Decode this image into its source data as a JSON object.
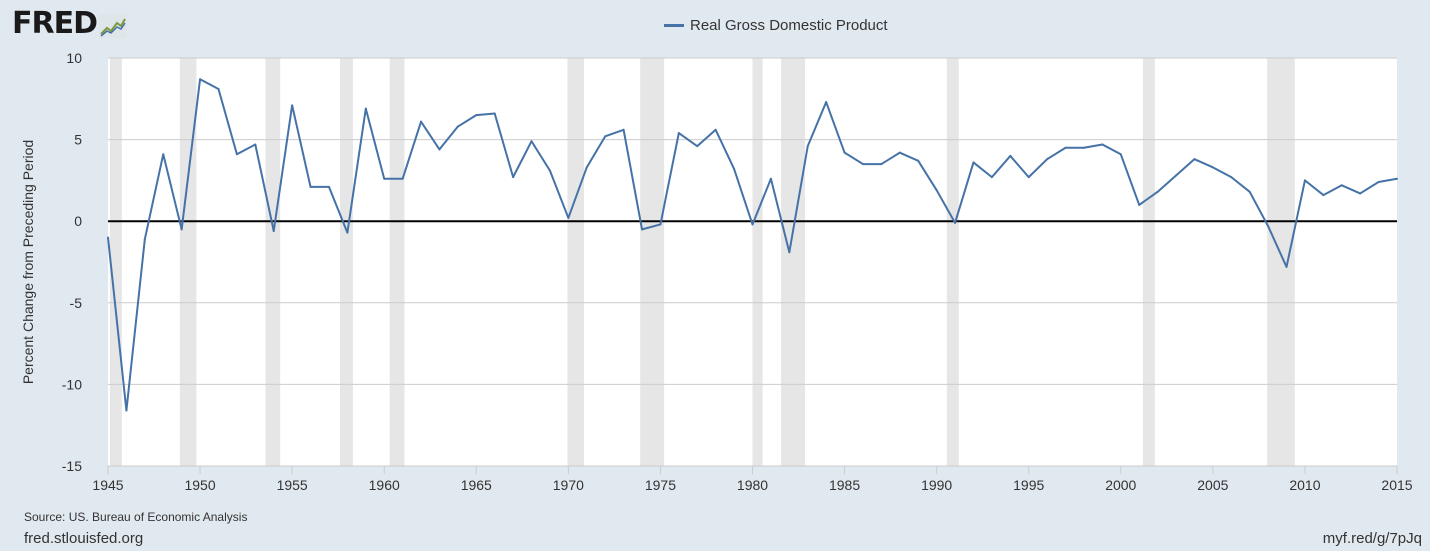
{
  "logo": {
    "text": "FRED",
    "icon": "chart-line-icon"
  },
  "chart_data": {
    "type": "line",
    "title": "",
    "xlabel": "",
    "ylabel": "Percent Change from Preceding Period",
    "xlim": [
      1945,
      2015
    ],
    "ylim": [
      -15,
      10
    ],
    "yticks": [
      10,
      5,
      0,
      -5,
      -10,
      -15
    ],
    "xticks": [
      1945,
      1950,
      1955,
      1960,
      1965,
      1970,
      1975,
      1980,
      1985,
      1990,
      1995,
      2000,
      2005,
      2010,
      2015
    ],
    "grid": true,
    "legend": "top-center",
    "series": [
      {
        "name": "Real Gross Domestic Product",
        "color": "#4572a7",
        "x": [
          1945,
          1946,
          1947,
          1948,
          1949,
          1950,
          1951,
          1952,
          1953,
          1954,
          1955,
          1956,
          1957,
          1958,
          1959,
          1960,
          1961,
          1962,
          1963,
          1964,
          1965,
          1966,
          1967,
          1968,
          1969,
          1970,
          1971,
          1972,
          1973,
          1974,
          1975,
          1976,
          1977,
          1978,
          1979,
          1980,
          1981,
          1982,
          1983,
          1984,
          1985,
          1986,
          1987,
          1988,
          1989,
          1990,
          1991,
          1992,
          1993,
          1994,
          1995,
          1996,
          1997,
          1998,
          1999,
          2000,
          2001,
          2002,
          2003,
          2004,
          2005,
          2006,
          2007,
          2008,
          2009,
          2010,
          2011,
          2012,
          2013,
          2014,
          2015
        ],
        "values": [
          -1.0,
          -11.6,
          -1.1,
          4.1,
          -0.5,
          8.7,
          8.1,
          4.1,
          4.7,
          -0.6,
          7.1,
          2.1,
          2.1,
          -0.7,
          6.9,
          2.6,
          2.6,
          6.1,
          4.4,
          5.8,
          6.5,
          6.6,
          2.7,
          4.9,
          3.1,
          0.2,
          3.3,
          5.2,
          5.6,
          -0.5,
          -0.2,
          5.4,
          4.6,
          5.6,
          3.2,
          -0.2,
          2.6,
          -1.9,
          4.6,
          7.3,
          4.2,
          3.5,
          3.5,
          4.2,
          3.7,
          1.9,
          -0.1,
          3.6,
          2.7,
          4.0,
          2.7,
          3.8,
          4.5,
          4.5,
          4.7,
          4.1,
          1.0,
          1.8,
          2.8,
          3.8,
          3.3,
          2.7,
          1.8,
          -0.3,
          -2.8,
          2.5,
          1.6,
          2.2,
          1.7,
          2.4,
          2.6
        ]
      }
    ],
    "recessions": [
      [
        1945.1,
        1945.75
      ],
      [
        1948.9,
        1949.8
      ],
      [
        1953.55,
        1954.35
      ],
      [
        1957.6,
        1958.3
      ],
      [
        1960.3,
        1961.1
      ],
      [
        1969.95,
        1970.85
      ],
      [
        1973.9,
        1975.2
      ],
      [
        1980.0,
        1980.55
      ],
      [
        1981.55,
        1982.85
      ],
      [
        1990.55,
        1991.2
      ],
      [
        2001.2,
        2001.85
      ],
      [
        2007.95,
        2009.45
      ]
    ],
    "recession_color": "#e6e6e6"
  },
  "source_note": "Source: US. Bureau of Economic Analysis",
  "footer": {
    "left": "fred.stlouisfed.org",
    "right": "myf.red/g/7pJq"
  }
}
